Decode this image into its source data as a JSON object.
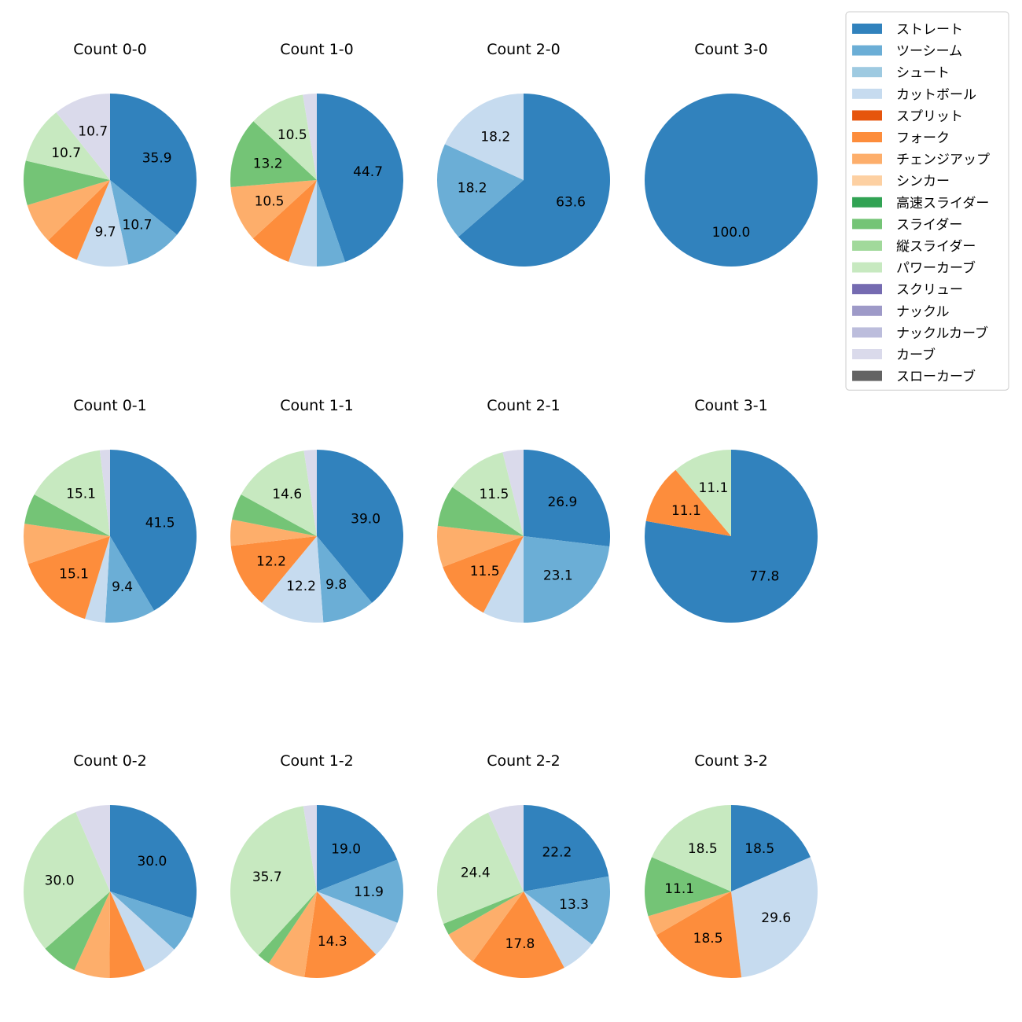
{
  "chart_data": {
    "type": "pie",
    "legend": {
      "placement": "top-right",
      "entries": [
        {
          "name": "ストレート",
          "color": "#3182bd"
        },
        {
          "name": "ツーシーム",
          "color": "#6baed6"
        },
        {
          "name": "シュート",
          "color": "#9ecae1"
        },
        {
          "name": "カットボール",
          "color": "#c6dbef"
        },
        {
          "name": "スプリット",
          "color": "#e6550d"
        },
        {
          "name": "フォーク",
          "color": "#fd8d3c"
        },
        {
          "name": "チェンジアップ",
          "color": "#fdae6b"
        },
        {
          "name": "シンカー",
          "color": "#fdd0a2"
        },
        {
          "name": "高速スライダー",
          "color": "#31a354"
        },
        {
          "name": "スライダー",
          "color": "#74c476"
        },
        {
          "name": "縦スライダー",
          "color": "#a1d99b"
        },
        {
          "name": "パワーカーブ",
          "color": "#c7e9c0"
        },
        {
          "name": "スクリュー",
          "color": "#756bb1"
        },
        {
          "name": "ナックル",
          "color": "#9e9ac8"
        },
        {
          "name": "ナックルカーブ",
          "color": "#bcbddc"
        },
        {
          "name": "カーブ",
          "color": "#dadaeb"
        },
        {
          "name": "スローカーブ",
          "color": "#636363"
        }
      ]
    },
    "charts": [
      {
        "title": "Count 0-0",
        "slices": [
          {
            "name": "ストレート",
            "value": 35.9,
            "label": "35.9"
          },
          {
            "name": "ツーシーム",
            "value": 10.7,
            "label": "10.7"
          },
          {
            "name": "カットボール",
            "value": 9.7,
            "label": "9.7"
          },
          {
            "name": "フォーク",
            "value": 6.4
          },
          {
            "name": "チェンジアップ",
            "value": 7.6
          },
          {
            "name": "スライダー",
            "value": 8.3
          },
          {
            "name": "パワーカーブ",
            "value": 10.7,
            "label": "10.7"
          },
          {
            "name": "カーブ",
            "value": 10.7,
            "label": "10.7"
          }
        ]
      },
      {
        "title": "Count 1-0",
        "slices": [
          {
            "name": "ストレート",
            "value": 44.7,
            "label": "44.7"
          },
          {
            "name": "ツーシーム",
            "value": 5.3
          },
          {
            "name": "カットボール",
            "value": 5.3
          },
          {
            "name": "フォーク",
            "value": 7.9
          },
          {
            "name": "チェンジアップ",
            "value": 10.5,
            "label": "10.5"
          },
          {
            "name": "スライダー",
            "value": 13.2,
            "label": "13.2"
          },
          {
            "name": "パワーカーブ",
            "value": 10.5,
            "label": "10.5"
          },
          {
            "name": "カーブ",
            "value": 2.6
          }
        ]
      },
      {
        "title": "Count 2-0",
        "slices": [
          {
            "name": "ストレート",
            "value": 63.6,
            "label": "63.6"
          },
          {
            "name": "ツーシーム",
            "value": 18.2,
            "label": "18.2"
          },
          {
            "name": "カットボール",
            "value": 18.2,
            "label": "18.2"
          }
        ]
      },
      {
        "title": "Count 3-0",
        "slices": [
          {
            "name": "ストレート",
            "value": 100.0,
            "label": "100.0"
          }
        ]
      },
      {
        "title": "Count 0-1",
        "slices": [
          {
            "name": "ストレート",
            "value": 41.5,
            "label": "41.5"
          },
          {
            "name": "ツーシーム",
            "value": 9.4,
            "label": "9.4"
          },
          {
            "name": "カットボール",
            "value": 3.8
          },
          {
            "name": "フォーク",
            "value": 15.1,
            "label": "15.1"
          },
          {
            "name": "チェンジアップ",
            "value": 7.5
          },
          {
            "name": "スライダー",
            "value": 5.7
          },
          {
            "name": "パワーカーブ",
            "value": 15.1,
            "label": "15.1"
          },
          {
            "name": "カーブ",
            "value": 1.9
          }
        ]
      },
      {
        "title": "Count 1-1",
        "slices": [
          {
            "name": "ストレート",
            "value": 39.0,
            "label": "39.0"
          },
          {
            "name": "ツーシーム",
            "value": 9.8,
            "label": "9.8"
          },
          {
            "name": "カットボール",
            "value": 12.2,
            "label": "12.2"
          },
          {
            "name": "フォーク",
            "value": 12.2,
            "label": "12.2"
          },
          {
            "name": "チェンジアップ",
            "value": 4.9
          },
          {
            "name": "スライダー",
            "value": 4.9
          },
          {
            "name": "パワーカーブ",
            "value": 14.6,
            "label": "14.6"
          },
          {
            "name": "カーブ",
            "value": 2.4
          }
        ]
      },
      {
        "title": "Count 2-1",
        "slices": [
          {
            "name": "ストレート",
            "value": 26.9,
            "label": "26.9"
          },
          {
            "name": "ツーシーム",
            "value": 23.1,
            "label": "23.1"
          },
          {
            "name": "カットボール",
            "value": 7.7
          },
          {
            "name": "フォーク",
            "value": 11.5,
            "label": "11.5"
          },
          {
            "name": "チェンジアップ",
            "value": 7.7
          },
          {
            "name": "スライダー",
            "value": 7.7
          },
          {
            "name": "パワーカーブ",
            "value": 11.5,
            "label": "11.5"
          },
          {
            "name": "カーブ",
            "value": 3.9
          }
        ]
      },
      {
        "title": "Count 3-1",
        "slices": [
          {
            "name": "ストレート",
            "value": 77.8,
            "label": "77.8"
          },
          {
            "name": "フォーク",
            "value": 11.1,
            "label": "11.1"
          },
          {
            "name": "パワーカーブ",
            "value": 11.1,
            "label": "11.1"
          }
        ]
      },
      {
        "title": "Count 0-2",
        "slices": [
          {
            "name": "ストレート",
            "value": 30.0,
            "label": "30.0"
          },
          {
            "name": "ツーシーム",
            "value": 6.7
          },
          {
            "name": "カットボール",
            "value": 6.7
          },
          {
            "name": "フォーク",
            "value": 6.7
          },
          {
            "name": "チェンジアップ",
            "value": 6.7
          },
          {
            "name": "スライダー",
            "value": 6.7
          },
          {
            "name": "パワーカーブ",
            "value": 30.0,
            "label": "30.0"
          },
          {
            "name": "カーブ",
            "value": 6.5
          }
        ]
      },
      {
        "title": "Count 1-2",
        "slices": [
          {
            "name": "ストレート",
            "value": 19.0,
            "label": "19.0"
          },
          {
            "name": "ツーシーム",
            "value": 11.9,
            "label": "11.9"
          },
          {
            "name": "カットボール",
            "value": 7.1
          },
          {
            "name": "フォーク",
            "value": 14.3,
            "label": "14.3"
          },
          {
            "name": "チェンジアップ",
            "value": 7.1
          },
          {
            "name": "スライダー",
            "value": 2.4
          },
          {
            "name": "パワーカーブ",
            "value": 35.7,
            "label": "35.7"
          },
          {
            "name": "カーブ",
            "value": 2.5
          }
        ]
      },
      {
        "title": "Count 2-2",
        "slices": [
          {
            "name": "ストレート",
            "value": 22.2,
            "label": "22.2"
          },
          {
            "name": "ツーシーム",
            "value": 13.3,
            "label": "13.3"
          },
          {
            "name": "カットボール",
            "value": 6.7
          },
          {
            "name": "フォーク",
            "value": 17.8,
            "label": "17.8"
          },
          {
            "name": "チェンジアップ",
            "value": 6.7
          },
          {
            "name": "スライダー",
            "value": 2.2
          },
          {
            "name": "パワーカーブ",
            "value": 24.4,
            "label": "24.4"
          },
          {
            "name": "カーブ",
            "value": 6.7
          }
        ]
      },
      {
        "title": "Count 3-2",
        "slices": [
          {
            "name": "ストレート",
            "value": 18.5,
            "label": "18.5"
          },
          {
            "name": "カットボール",
            "value": 29.6,
            "label": "29.6"
          },
          {
            "name": "フォーク",
            "value": 18.5,
            "label": "18.5"
          },
          {
            "name": "チェンジアップ",
            "value": 3.8
          },
          {
            "name": "スライダー",
            "value": 11.1,
            "label": "11.1"
          },
          {
            "name": "パワーカーブ",
            "value": 18.5,
            "label": "18.5"
          }
        ]
      }
    ]
  }
}
